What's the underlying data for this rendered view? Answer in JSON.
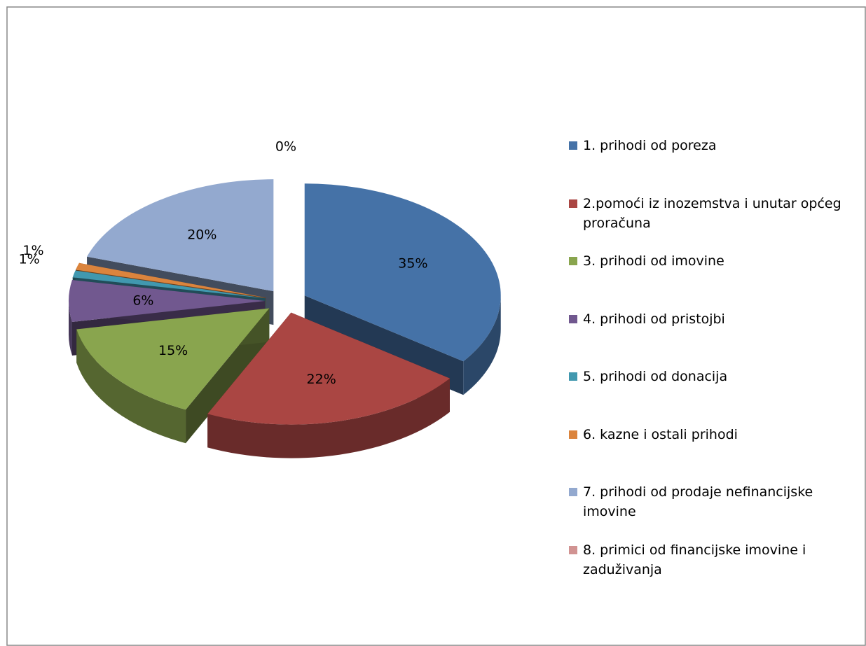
{
  "chart_data": {
    "type": "pie",
    "categories": [
      "1. prihodi od poreza",
      "2.pomoći iz inozemstva i unutar općeg proračuna",
      "3. prihodi od imovine",
      "4. prihodi od pristojbi",
      "5. prihodi od donacija",
      "6. kazne i ostali prihodi",
      "7. prihodi od prodaje nefinancijske imovine",
      "8. primici od financijske imovine i zaduživanja"
    ],
    "values": [
      35,
      22,
      15,
      6,
      1,
      1,
      20,
      0
    ],
    "value_labels": [
      "35%",
      "22%",
      "15%",
      "6%",
      "1%",
      "1%",
      "20%",
      "0%"
    ],
    "colors": [
      "#4572a7",
      "#aa4643",
      "#89a54e",
      "#71588f",
      "#4198af",
      "#db843d",
      "#93a9cf",
      "#d19392"
    ],
    "legend": "right"
  }
}
